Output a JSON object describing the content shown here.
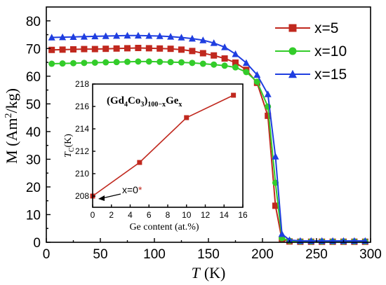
{
  "chart_data": [
    {
      "type": "line",
      "xlabel": "T",
      "xunit": "(K)",
      "ylabel": "M (Am",
      "ylabel_sup": "2",
      "ylabel_end": "/kg)",
      "xlim": [
        0,
        300
      ],
      "ylim": [
        0,
        85
      ],
      "xticks": [
        0,
        50,
        100,
        150,
        200,
        250,
        300
      ],
      "yticks": [
        0,
        10,
        20,
        30,
        40,
        50,
        60,
        70,
        80
      ],
      "legend_position": "top-right",
      "series": [
        {
          "name": "x=5",
          "color": "#c0281e",
          "marker": "square",
          "x": [
            5,
            15,
            25,
            35,
            45,
            55,
            65,
            75,
            85,
            95,
            105,
            115,
            125,
            135,
            145,
            155,
            165,
            175,
            185,
            195,
            205,
            212,
            218,
            225,
            235,
            245,
            255,
            265,
            275,
            285,
            295
          ],
          "y": [
            69.5,
            69.6,
            69.7,
            69.8,
            69.8,
            69.9,
            70.0,
            70.1,
            70.2,
            70.1,
            70.0,
            69.9,
            69.6,
            69.1,
            68.3,
            67.5,
            66.4,
            64.9,
            62.3,
            57.6,
            45.7,
            13.2,
            1.0,
            0.3,
            0.2,
            0.2,
            0.2,
            0.2,
            0.2,
            0.2,
            0.2
          ]
        },
        {
          "name": "x=10",
          "color": "#33cc2a",
          "marker": "circle",
          "x": [
            5,
            15,
            25,
            35,
            45,
            55,
            65,
            75,
            85,
            95,
            105,
            115,
            125,
            135,
            145,
            155,
            165,
            175,
            185,
            195,
            205,
            212,
            218,
            225,
            235,
            245,
            255,
            265,
            275,
            285,
            295
          ],
          "y": [
            64.5,
            64.6,
            64.7,
            64.8,
            64.9,
            65.0,
            65.1,
            65.2,
            65.3,
            65.3,
            65.2,
            65.1,
            65.0,
            64.8,
            64.5,
            64.2,
            63.8,
            63.2,
            61.5,
            58.0,
            49.0,
            21.5,
            1.5,
            0.5,
            0.3,
            0.3,
            0.3,
            0.3,
            0.3,
            0.3,
            0.3
          ]
        },
        {
          "name": "x=15",
          "color": "#1f3ee0",
          "marker": "triangle",
          "x": [
            5,
            15,
            25,
            35,
            45,
            55,
            65,
            75,
            85,
            95,
            105,
            115,
            125,
            135,
            145,
            155,
            165,
            175,
            185,
            195,
            205,
            212,
            218,
            225,
            235,
            245,
            255,
            265,
            275,
            285,
            295
          ],
          "y": [
            74.0,
            74.1,
            74.2,
            74.3,
            74.4,
            74.5,
            74.6,
            74.7,
            74.7,
            74.6,
            74.5,
            74.3,
            74.0,
            73.6,
            73.0,
            72.0,
            70.5,
            68.0,
            64.8,
            60.5,
            53.5,
            31.0,
            3.0,
            0.8,
            0.5,
            0.5,
            0.5,
            0.5,
            0.5,
            0.5,
            0.5
          ]
        }
      ]
    },
    {
      "type": "line",
      "title_parts": [
        "(Gd",
        "4",
        "Co",
        "3",
        ")",
        "100−x",
        "Ge",
        "x"
      ],
      "xlabel": "Ge content (at.%)",
      "ylabel": "T",
      "ylabel_sub": "C",
      "ylabel_unit": "(K)",
      "xlim": [
        0,
        16
      ],
      "ylim": [
        207,
        218
      ],
      "xticks": [
        0,
        2,
        4,
        6,
        8,
        10,
        12,
        14,
        16
      ],
      "yticks": [
        208,
        210,
        212,
        214,
        216,
        218
      ],
      "annotation": "x=0",
      "annotation_star": "*",
      "series": [
        {
          "color": "#c0281e",
          "marker": "square",
          "x": [
            0,
            5,
            10,
            15
          ],
          "y": [
            208.0,
            211.0,
            215.0,
            217.0
          ]
        }
      ]
    }
  ]
}
